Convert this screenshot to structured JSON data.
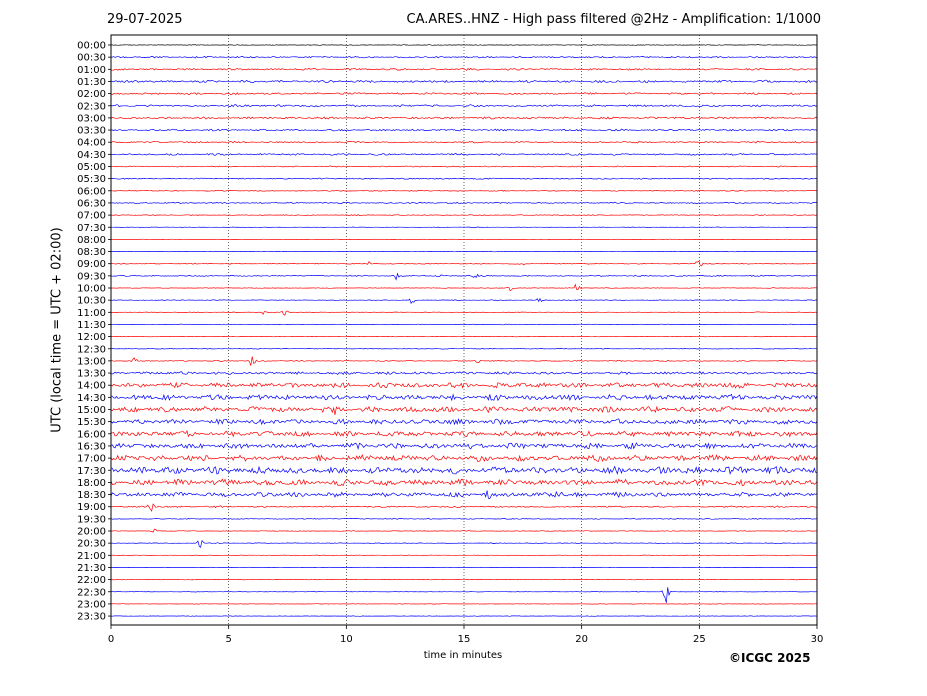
{
  "header": {
    "date": "29-07-2025",
    "title": "CA.ARES..HNZ - High pass filtered @2Hz - Amplification: 1/1000"
  },
  "footer": {
    "copyright": "©ICGC 2025"
  },
  "colors": {
    "trace_odd": "#ff0000",
    "trace_even": "#0000ff",
    "grid": "#000000"
  },
  "chart_data": {
    "type": "line",
    "title": "CA.ARES..HNZ - High pass filtered @2Hz - Amplification: 1/1000",
    "xlabel": "time in minutes",
    "ylabel": "UTC (local time = UTC + 02:00)",
    "xlim": [
      0,
      30
    ],
    "x_ticks": [
      0,
      5,
      10,
      15,
      20,
      25,
      30
    ],
    "grid": "vertical dotted lines every 5 minutes",
    "rows": [
      "00:00",
      "00:30",
      "01:00",
      "01:30",
      "02:00",
      "02:30",
      "03:00",
      "03:30",
      "04:00",
      "04:30",
      "05:00",
      "05:30",
      "06:00",
      "06:30",
      "07:00",
      "07:30",
      "08:00",
      "08:30",
      "09:00",
      "09:30",
      "10:00",
      "10:30",
      "11:00",
      "11:30",
      "12:00",
      "12:30",
      "13:00",
      "13:30",
      "14:00",
      "14:30",
      "15:00",
      "15:30",
      "16:00",
      "16:30",
      "17:00",
      "17:30",
      "18:00",
      "18:30",
      "19:00",
      "19:30",
      "20:00",
      "20:30",
      "21:00",
      "21:30",
      "22:00",
      "22:30",
      "23:00",
      "23:30"
    ],
    "row_colors": [
      "black",
      "blue",
      "red",
      "blue",
      "red",
      "blue",
      "red",
      "blue",
      "red",
      "blue",
      "red",
      "blue",
      "red",
      "blue",
      "red",
      "blue",
      "red",
      "blue",
      "red",
      "blue",
      "red",
      "blue",
      "red",
      "blue",
      "red",
      "blue",
      "red",
      "blue",
      "red",
      "blue",
      "red",
      "blue",
      "red",
      "blue",
      "red",
      "blue",
      "red",
      "blue",
      "red",
      "blue",
      "red",
      "blue",
      "red",
      "blue",
      "red",
      "blue",
      "red",
      "blue"
    ],
    "noise_level": [
      0.3,
      0.7,
      0.8,
      1.0,
      0.8,
      0.9,
      0.9,
      0.8,
      0.7,
      0.8,
      0.5,
      0.5,
      0.4,
      0.6,
      0.4,
      0.2,
      0.2,
      0.2,
      0.4,
      0.5,
      0.3,
      0.3,
      0.3,
      0.3,
      0.2,
      0.3,
      0.4,
      1.2,
      2.2,
      2.4,
      2.4,
      2.2,
      2.4,
      2.4,
      2.6,
      3.0,
      2.6,
      2.0,
      0.7,
      0.4,
      0.3,
      0.3,
      0.2,
      0.2,
      0.2,
      0.2,
      0.2,
      0.2
    ],
    "events": [
      {
        "row": 18,
        "minute": 25.0,
        "amp": 7
      },
      {
        "row": 18,
        "minute": 11.0,
        "amp": 3
      },
      {
        "row": 18,
        "minute": 17.5,
        "amp": 2
      },
      {
        "row": 19,
        "minute": 12.2,
        "amp": 6
      },
      {
        "row": 19,
        "minute": 14.0,
        "amp": 2
      },
      {
        "row": 19,
        "minute": 15.5,
        "amp": 2
      },
      {
        "row": 20,
        "minute": 17.0,
        "amp": 4
      },
      {
        "row": 20,
        "minute": 19.8,
        "amp": 5
      },
      {
        "row": 21,
        "minute": 12.8,
        "amp": 4
      },
      {
        "row": 21,
        "minute": 18.2,
        "amp": 2
      },
      {
        "row": 22,
        "minute": 7.4,
        "amp": 4
      },
      {
        "row": 22,
        "minute": 6.5,
        "amp": 2
      },
      {
        "row": 26,
        "minute": 6.0,
        "amp": 7
      },
      {
        "row": 26,
        "minute": 1.0,
        "amp": 3
      },
      {
        "row": 26,
        "minute": 15.6,
        "amp": 3
      },
      {
        "row": 28,
        "minute": 17.5,
        "amp": 6
      },
      {
        "row": 30,
        "minute": 9.5,
        "amp": 7
      },
      {
        "row": 37,
        "minute": 19.0,
        "amp": 8
      },
      {
        "row": 37,
        "minute": 16.0,
        "amp": 5
      },
      {
        "row": 38,
        "minute": 1.7,
        "amp": 5
      },
      {
        "row": 40,
        "minute": 1.9,
        "amp": 4
      },
      {
        "row": 41,
        "minute": 3.8,
        "amp": 5
      },
      {
        "row": 45,
        "minute": 23.6,
        "amp": 13
      }
    ]
  }
}
